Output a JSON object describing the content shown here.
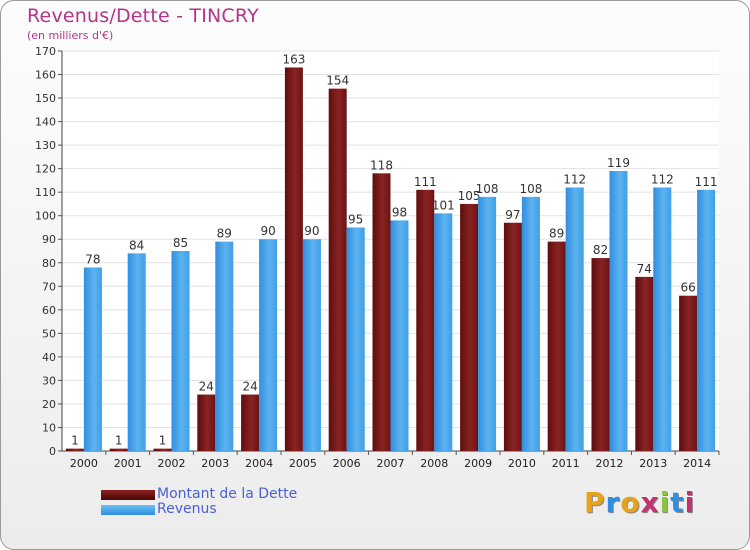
{
  "header": {
    "title": "Revenus/Dette - TINCRY",
    "unit": "(en milliers d'€)"
  },
  "colors": {
    "dette": "#7a1818",
    "revenus": "#3f9fe6",
    "title": "#b5338a",
    "legend_text": "#4b5fd6"
  },
  "legend": [
    {
      "label": "Montant de la Dette",
      "color": "#6b1212"
    },
    {
      "label": "Revenus",
      "color": "#3f9fe6"
    }
  ],
  "logo": {
    "text": "Proxiti"
  },
  "chart_data": {
    "type": "bar",
    "title": "Revenus/Dette - TINCRY",
    "ylabel": "(en milliers d'€)",
    "xlabel": "",
    "ylim": [
      0,
      170
    ],
    "yticks": [
      0,
      10,
      20,
      30,
      40,
      50,
      60,
      70,
      80,
      90,
      100,
      110,
      120,
      130,
      140,
      150,
      160,
      170
    ],
    "grid": true,
    "categories": [
      "2000",
      "2001",
      "2002",
      "2003",
      "2004",
      "2005",
      "2006",
      "2007",
      "2008",
      "2009",
      "2010",
      "2011",
      "2012",
      "2013",
      "2014"
    ],
    "series": [
      {
        "name": "Montant de la Dette",
        "values": [
          1,
          1,
          1,
          24,
          24,
          163,
          154,
          118,
          111,
          105,
          97,
          89,
          82,
          74,
          66
        ]
      },
      {
        "name": "Revenus",
        "values": [
          78,
          84,
          85,
          89,
          90,
          90,
          95,
          98,
          101,
          108,
          108,
          112,
          119,
          112,
          111
        ]
      }
    ]
  }
}
